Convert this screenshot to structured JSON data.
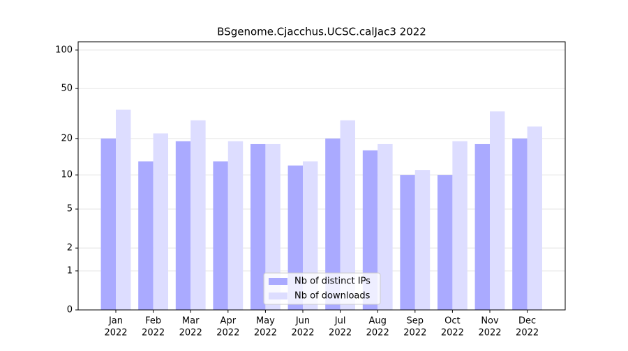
{
  "chart_data": {
    "type": "bar",
    "title": "BSgenome.Cjacchus.UCSC.calJac3 2022",
    "categories": [
      [
        "Jan",
        "2022"
      ],
      [
        "Feb",
        "2022"
      ],
      [
        "Mar",
        "2022"
      ],
      [
        "Apr",
        "2022"
      ],
      [
        "May",
        "2022"
      ],
      [
        "Jun",
        "2022"
      ],
      [
        "Jul",
        "2022"
      ],
      [
        "Aug",
        "2022"
      ],
      [
        "Sep",
        "2022"
      ],
      [
        "Oct",
        "2022"
      ],
      [
        "Nov",
        "2022"
      ],
      [
        "Dec",
        "2022"
      ]
    ],
    "series": [
      {
        "name": "Nb of distinct IPs",
        "color": "#aaaaff",
        "values": [
          20,
          13,
          19,
          13,
          18,
          12,
          20,
          16,
          10,
          10,
          18,
          20
        ]
      },
      {
        "name": "Nb of downloads",
        "color": "#ddddff",
        "values": [
          34,
          22,
          28,
          19,
          18,
          13,
          28,
          18,
          11,
          19,
          33,
          25
        ]
      }
    ],
    "yscale": "log1p",
    "ylim": [
      0,
      116
    ],
    "yticks": [
      0,
      1,
      2,
      5,
      10,
      20,
      50,
      100
    ],
    "grid": true,
    "legend": "lower center"
  }
}
